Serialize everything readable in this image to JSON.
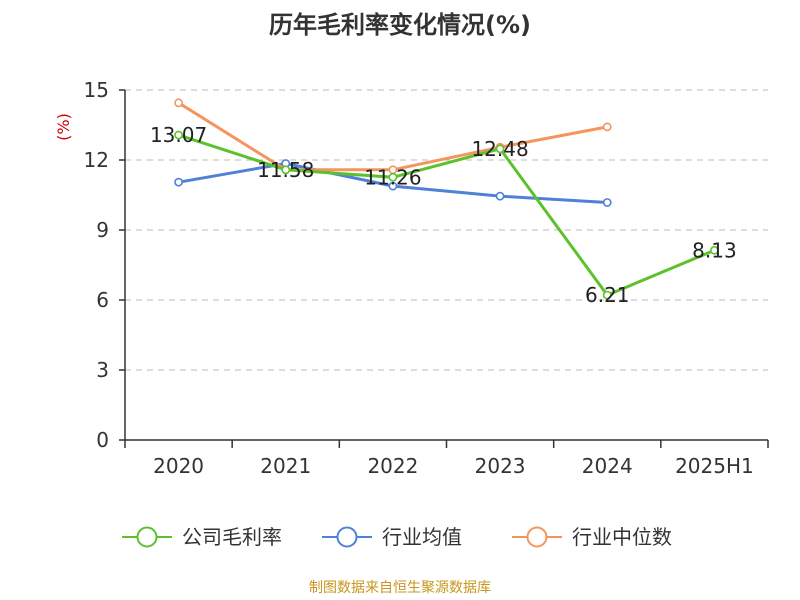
{
  "chart_data": {
    "type": "line",
    "title": "历年毛利率变化情况(%)",
    "ylabel": "(%)",
    "categories": [
      "2020",
      "2021",
      "2022",
      "2023",
      "2024",
      "2025H1"
    ],
    "ylim": [
      0,
      15
    ],
    "yticks": [
      0,
      3,
      6,
      9,
      12,
      15
    ],
    "grid": "horizontal-dashed",
    "legend_position": "bottom",
    "series": [
      {
        "name": "公司毛利率",
        "color": "#5CC12B",
        "values": [
          13.07,
          11.58,
          11.26,
          12.48,
          6.21,
          8.13
        ],
        "data_labels": [
          "13.07",
          "11.58",
          "11.26",
          "12.48",
          "6.21",
          "8.13"
        ]
      },
      {
        "name": "行业均值",
        "color": "#4F81D9",
        "values": [
          11.05,
          11.85,
          10.88,
          10.45,
          10.18,
          null
        ]
      },
      {
        "name": "行业中位数",
        "color": "#F49560",
        "values": [
          14.45,
          11.58,
          11.58,
          12.55,
          13.42,
          null
        ]
      }
    ]
  },
  "source_text": "制图数据来自恒生聚源数据库",
  "colors": {
    "axis_label": "#CC0000",
    "source": "#C8961E",
    "grid": "#BBBBBB",
    "axis": "#333333"
  }
}
